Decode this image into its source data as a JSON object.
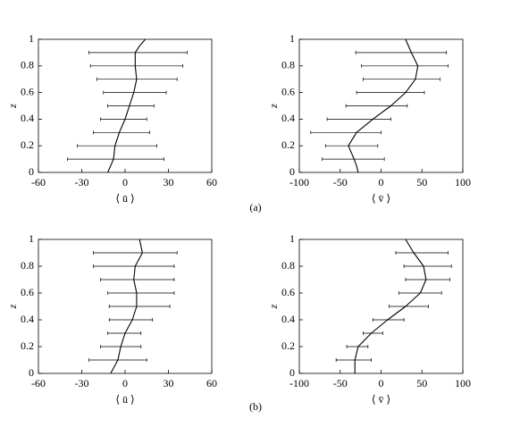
{
  "chart_data": [
    {
      "type": "errorbar",
      "xlabel": "⟨ ū ⟩",
      "ylabel": "z",
      "xlim": [
        -60,
        60
      ],
      "ylim": [
        0,
        1
      ],
      "xticks": [
        -60,
        -30,
        0,
        30,
        60
      ],
      "yticks": [
        0,
        0.2,
        0.4,
        0.6,
        0.8,
        1
      ],
      "curve": {
        "z": [
          0,
          0.05,
          0.1,
          0.2,
          0.3,
          0.4,
          0.5,
          0.6,
          0.7,
          0.8,
          0.9,
          0.95,
          1
        ],
        "values": [
          -12,
          -10,
          -8,
          -7,
          -4,
          0,
          3,
          6,
          8,
          7,
          7,
          10,
          14
        ]
      },
      "bars": {
        "z": [
          0.1,
          0.2,
          0.3,
          0.4,
          0.5,
          0.6,
          0.7,
          0.8,
          0.9
        ],
        "low": [
          -40,
          -33,
          -22,
          -17,
          -12,
          -15,
          -19.5,
          -24,
          -25
        ],
        "high": [
          27,
          22,
          17,
          15,
          20,
          28.5,
          36,
          40,
          43
        ]
      }
    },
    {
      "type": "errorbar",
      "xlabel": "⟨ v̄ ⟩",
      "ylabel": "z",
      "xlim": [
        -100,
        100
      ],
      "ylim": [
        0,
        1
      ],
      "xticks": [
        -100,
        -50,
        0,
        50,
        100
      ],
      "yticks": [
        0,
        0.2,
        0.4,
        0.6,
        0.8,
        1
      ],
      "curve": {
        "z": [
          0,
          0.05,
          0.1,
          0.2,
          0.3,
          0.4,
          0.5,
          0.6,
          0.7,
          0.8,
          0.9,
          1
        ],
        "values": [
          -28,
          -30,
          -33,
          -40,
          -30,
          -10,
          12,
          30,
          42,
          45,
          37,
          30
        ]
      },
      "bars": {
        "z": [
          0.1,
          0.2,
          0.3,
          0.4,
          0.5,
          0.6,
          0.7,
          0.8,
          0.9
        ],
        "low": [
          -72,
          -68,
          -86,
          -66,
          -43,
          -30,
          -22,
          -24,
          -31
        ],
        "high": [
          4,
          -4,
          0,
          12,
          32,
          53,
          72,
          82,
          80
        ]
      }
    },
    {
      "type": "errorbar",
      "xlabel": "⟨ ū ⟩",
      "ylabel": "z",
      "xlim": [
        -60,
        60
      ],
      "ylim": [
        0,
        1
      ],
      "xticks": [
        -60,
        -30,
        0,
        30,
        60
      ],
      "yticks": [
        0,
        0.2,
        0.4,
        0.6,
        0.8,
        1
      ],
      "curve": {
        "z": [
          0,
          0.1,
          0.2,
          0.3,
          0.4,
          0.5,
          0.6,
          0.7,
          0.8,
          0.9,
          1
        ],
        "values": [
          -10,
          -5,
          -3,
          0,
          5,
          8,
          8,
          6,
          7,
          12,
          10
        ]
      },
      "bars": {
        "z": [
          0.1,
          0.2,
          0.3,
          0.4,
          0.5,
          0.6,
          0.7,
          0.8,
          0.9
        ],
        "low": [
          -25,
          -17,
          -12,
          -11,
          -11,
          -12,
          -17,
          -22,
          -22
        ],
        "high": [
          15,
          11,
          11,
          19,
          31,
          34,
          34,
          34,
          36
        ]
      }
    },
    {
      "type": "errorbar",
      "xlabel": "⟨ v̄ ⟩",
      "ylabel": "z",
      "xlim": [
        -100,
        100
      ],
      "ylim": [
        0,
        1
      ],
      "xticks": [
        -100,
        -50,
        0,
        50,
        100
      ],
      "yticks": [
        0,
        0.2,
        0.4,
        0.6,
        0.8,
        1
      ],
      "curve": {
        "z": [
          0,
          0.1,
          0.2,
          0.3,
          0.4,
          0.5,
          0.6,
          0.7,
          0.8,
          0.9,
          1
        ],
        "values": [
          -32,
          -32,
          -28,
          -12,
          8,
          30,
          48,
          55,
          52,
          40,
          30
        ]
      },
      "bars": {
        "z": [
          0.1,
          0.2,
          0.3,
          0.4,
          0.5,
          0.6,
          0.7,
          0.8,
          0.9
        ],
        "low": [
          -55,
          -42,
          -22,
          -10,
          10,
          22,
          30,
          28,
          18
        ],
        "high": [
          -12,
          -16,
          2,
          28,
          58,
          74,
          84,
          86,
          82
        ]
      }
    }
  ],
  "captions": [
    "(a)",
    "(b)"
  ]
}
